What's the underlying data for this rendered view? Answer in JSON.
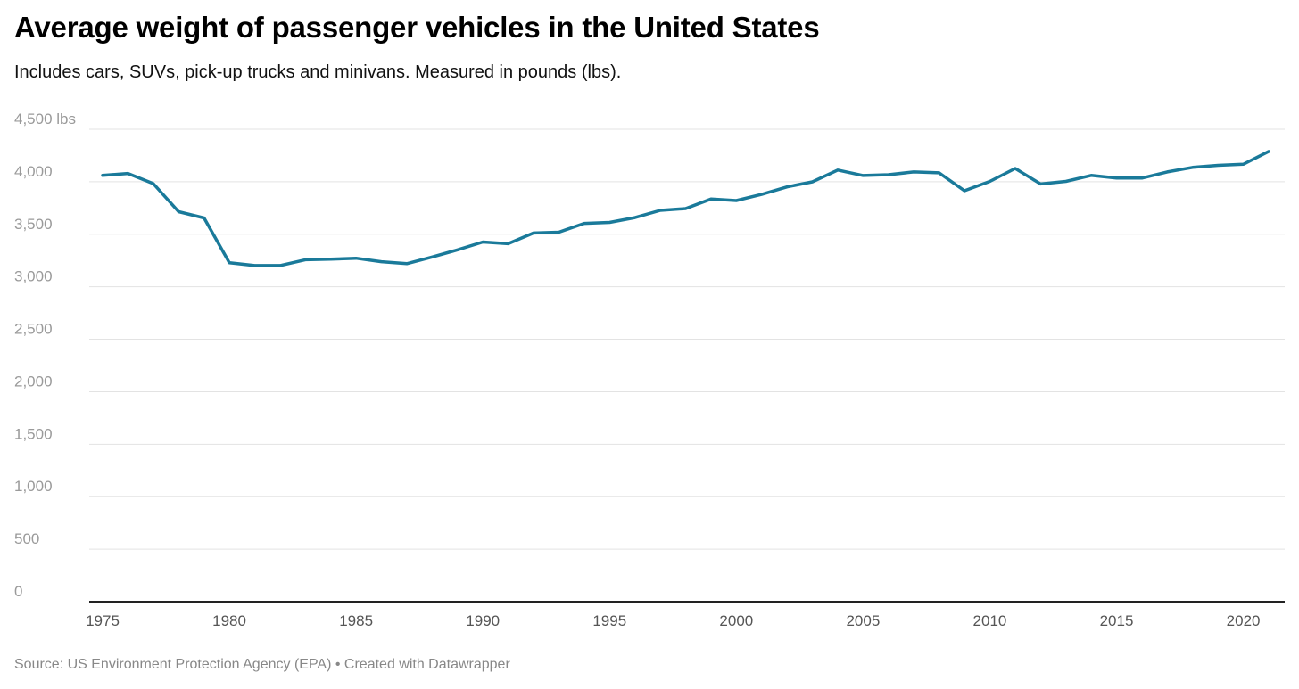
{
  "title": "Average weight of passenger vehicles in the United States",
  "subtitle": "Includes cars, SUVs, pick-up trucks and minivans. Measured in pounds (lbs).",
  "source": "Source: US Environment Protection Agency (EPA) • Created with Datawrapper",
  "chart_data": {
    "type": "line",
    "title": "Average weight of passenger vehicles in the United States",
    "subtitle": "Includes cars, SUVs, pick-up trucks and minivans. Measured in pounds (lbs).",
    "xlabel": "",
    "ylabel": "",
    "x": [
      1975,
      1976,
      1977,
      1978,
      1979,
      1980,
      1981,
      1982,
      1983,
      1984,
      1985,
      1986,
      1987,
      1988,
      1989,
      1990,
      1991,
      1992,
      1993,
      1994,
      1995,
      1996,
      1997,
      1998,
      1999,
      2000,
      2001,
      2002,
      2003,
      2004,
      2005,
      2006,
      2007,
      2008,
      2009,
      2010,
      2011,
      2012,
      2013,
      2014,
      2015,
      2016,
      2017,
      2018,
      2019,
      2020,
      2021
    ],
    "series": [
      {
        "values": [
          4060,
          4079,
          3982,
          3715,
          3655,
          3228,
          3202,
          3202,
          3257,
          3262,
          3271,
          3238,
          3220,
          3283,
          3351,
          3426,
          3410,
          3512,
          3519,
          3603,
          3613,
          3659,
          3727,
          3744,
          3835,
          3821,
          3879,
          3951,
          3999,
          4111,
          4059,
          4067,
          4093,
          4085,
          3914,
          4003,
          4126,
          3979,
          4003,
          4060,
          4035,
          4035,
          4093,
          4137,
          4156,
          4166,
          4289
        ],
        "color": "#1a7a9a"
      }
    ],
    "ylim": [
      0,
      4500
    ],
    "yticks": [
      0,
      500,
      1000,
      1500,
      2000,
      2500,
      3000,
      3500,
      4000,
      4500
    ],
    "ytick_labels": [
      "0",
      "500",
      "1,000",
      "1,500",
      "2,000",
      "2,500",
      "3,000",
      "3,500",
      "4,000",
      "4,500 lbs"
    ],
    "xlim": [
      1975,
      2021
    ],
    "xticks": [
      1975,
      1980,
      1985,
      1990,
      1995,
      2000,
      2005,
      2010,
      2015,
      2020
    ],
    "xtick_labels": [
      "1975",
      "1980",
      "1985",
      "1990",
      "1995",
      "2000",
      "2005",
      "2010",
      "2015",
      "2020"
    ],
    "grid": true,
    "legend": "none"
  }
}
